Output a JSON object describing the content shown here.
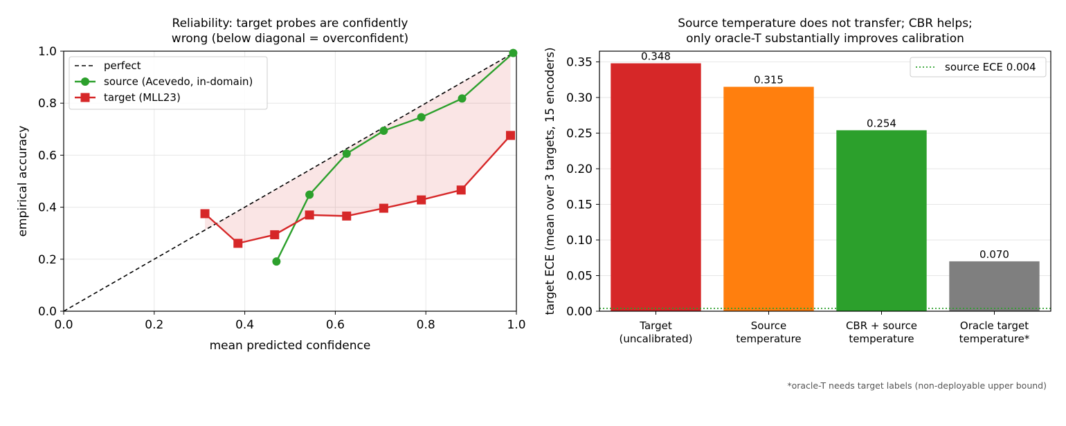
{
  "footnote": "*oracle-T needs target labels (non-deployable upper bound)",
  "chart_data": [
    {
      "type": "line",
      "title": "Reliability: target probes are confidently\nwrong (below diagonal = overconfident)",
      "xlabel": "mean predicted confidence",
      "ylabel": "empirical accuracy",
      "xlim": [
        0,
        1
      ],
      "ylim": [
        0,
        1
      ],
      "xticks": [
        "0.0",
        "0.2",
        "0.4",
        "0.6",
        "0.8",
        "1.0"
      ],
      "yticks": [
        "0.0",
        "0.2",
        "0.4",
        "0.6",
        "0.8",
        "1.0"
      ],
      "grid": true,
      "legend_position": "top-left",
      "shaded_gap": {
        "between": [
          "perfect",
          "target (MLL23)"
        ],
        "color": "#d62728"
      },
      "series": [
        {
          "name": "perfect",
          "style": "dashed",
          "color": "#000000",
          "x": [
            0,
            1
          ],
          "y": [
            0,
            1
          ]
        },
        {
          "name": "source (Acevedo, in-domain)",
          "marker": "circle",
          "color": "#2ca02c",
          "x": [
            0.47,
            0.543,
            0.625,
            0.707,
            0.79,
            0.88,
            0.993
          ],
          "y": [
            0.191,
            0.448,
            0.606,
            0.694,
            0.746,
            0.818,
            0.993
          ]
        },
        {
          "name": "target (MLL23)",
          "marker": "square",
          "color": "#d62728",
          "x": [
            0.312,
            0.385,
            0.466,
            0.543,
            0.625,
            0.707,
            0.79,
            0.878,
            0.987
          ],
          "y": [
            0.375,
            0.261,
            0.294,
            0.37,
            0.366,
            0.396,
            0.428,
            0.466,
            0.676
          ]
        }
      ]
    },
    {
      "type": "bar",
      "title": "Source temperature does not transfer; CBR helps;\nonly oracle-T substantially improves calibration",
      "xlabel": "",
      "ylabel": "target ECE (mean over 3 targets, 15 encoders)",
      "ylim": [
        0,
        0.365
      ],
      "yticks": [
        "0.00",
        "0.05",
        "0.10",
        "0.15",
        "0.20",
        "0.25",
        "0.30",
        "0.35"
      ],
      "grid": true,
      "legend_position": "top-right",
      "categories": [
        "Target\n(uncalibrated)",
        "Source\ntemperature",
        "CBR + source\ntemperature",
        "Oracle target\ntemperature*"
      ],
      "values": [
        0.348,
        0.315,
        0.254,
        0.07
      ],
      "value_labels": [
        "0.348",
        "0.315",
        "0.254",
        "0.070"
      ],
      "colors": [
        "#d62728",
        "#ff7f0e",
        "#2ca02c",
        "#7f7f7f"
      ],
      "reference_line": {
        "label": "source ECE 0.004",
        "value": 0.004,
        "style": "dotted",
        "color": "#2ca02c"
      }
    }
  ]
}
